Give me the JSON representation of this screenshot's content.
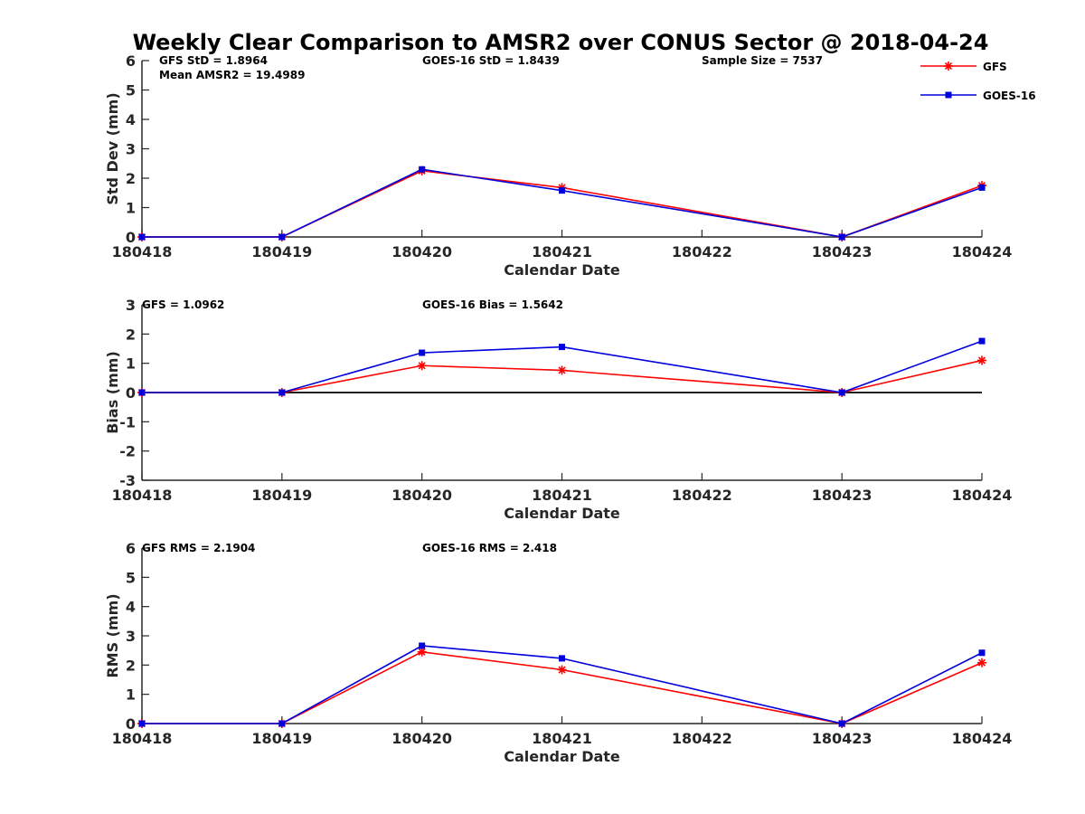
{
  "title": "Weekly Clear Comparison to AMSR2 over CONUS Sector @ 2018-04-24",
  "colors": {
    "GFS": "#ff0000",
    "GOES-16": "#0000dd",
    "axis": "#262626",
    "zero_line": "#000000"
  },
  "legend": {
    "placement": "top-right",
    "entries": [
      {
        "name": "GFS",
        "marker": "asterisk"
      },
      {
        "name": "GOES-16",
        "marker": "square"
      }
    ]
  },
  "chart_data": [
    {
      "type": "line",
      "xlabel": "Calendar Date",
      "ylabel": "Std Dev (mm)",
      "ylim": [
        0,
        6
      ],
      "yticks": [
        "0",
        "1",
        "2",
        "3",
        "4",
        "5",
        "6"
      ],
      "categories": [
        "180418",
        "180419",
        "180420",
        "180421",
        "180422",
        "180423",
        "180424"
      ],
      "series": [
        {
          "name": "GFS",
          "x": [
            "180418",
            "180419",
            "180420",
            "180421",
            "180423",
            "180424"
          ],
          "values": [
            0,
            0,
            2.25,
            1.68,
            0,
            1.75
          ]
        },
        {
          "name": "GOES-16",
          "x": [
            "180418",
            "180419",
            "180420",
            "180421",
            "180423",
            "180424"
          ],
          "values": [
            0,
            0,
            2.3,
            1.58,
            0,
            1.68
          ]
        }
      ],
      "annotations": [
        "GFS StD = 1.8964",
        "Mean AMSR2 = 19.4989",
        "GOES-16 StD = 1.8439",
        "Sample Size = 7537"
      ],
      "zero_line": false
    },
    {
      "type": "line",
      "xlabel": "Calendar Date",
      "ylabel": "Bias (mm)",
      "ylim": [
        -3,
        3
      ],
      "yticks": [
        "-3",
        "-2",
        "-1",
        "0",
        "1",
        "2",
        "3"
      ],
      "categories": [
        "180418",
        "180419",
        "180420",
        "180421",
        "180422",
        "180423",
        "180424"
      ],
      "series": [
        {
          "name": "GFS",
          "x": [
            "180418",
            "180419",
            "180420",
            "180421",
            "180423",
            "180424"
          ],
          "values": [
            0,
            0,
            0.92,
            0.76,
            0,
            1.1
          ]
        },
        {
          "name": "GOES-16",
          "x": [
            "180418",
            "180419",
            "180420",
            "180421",
            "180423",
            "180424"
          ],
          "values": [
            0,
            0,
            1.36,
            1.56,
            0,
            1.76
          ]
        }
      ],
      "annotations": [
        "GFS = 1.0962",
        "GOES-16 Bias  = 1.5642"
      ],
      "zero_line": true
    },
    {
      "type": "line",
      "xlabel": "Calendar Date",
      "ylabel": "RMS (mm)",
      "ylim": [
        0,
        6
      ],
      "yticks": [
        "0",
        "1",
        "2",
        "3",
        "4",
        "5",
        "6"
      ],
      "categories": [
        "180418",
        "180419",
        "180420",
        "180421",
        "180422",
        "180423",
        "180424"
      ],
      "series": [
        {
          "name": "GFS",
          "x": [
            "180418",
            "180419",
            "180420",
            "180421",
            "180423",
            "180424"
          ],
          "values": [
            0,
            0,
            2.45,
            1.84,
            0,
            2.08
          ]
        },
        {
          "name": "GOES-16",
          "x": [
            "180418",
            "180419",
            "180420",
            "180421",
            "180423",
            "180424"
          ],
          "values": [
            0,
            0,
            2.66,
            2.23,
            0,
            2.42
          ]
        }
      ],
      "annotations": [
        "GFS RMS = 2.1904",
        "GOES-16 RMS = 2.418"
      ],
      "zero_line": false
    }
  ]
}
